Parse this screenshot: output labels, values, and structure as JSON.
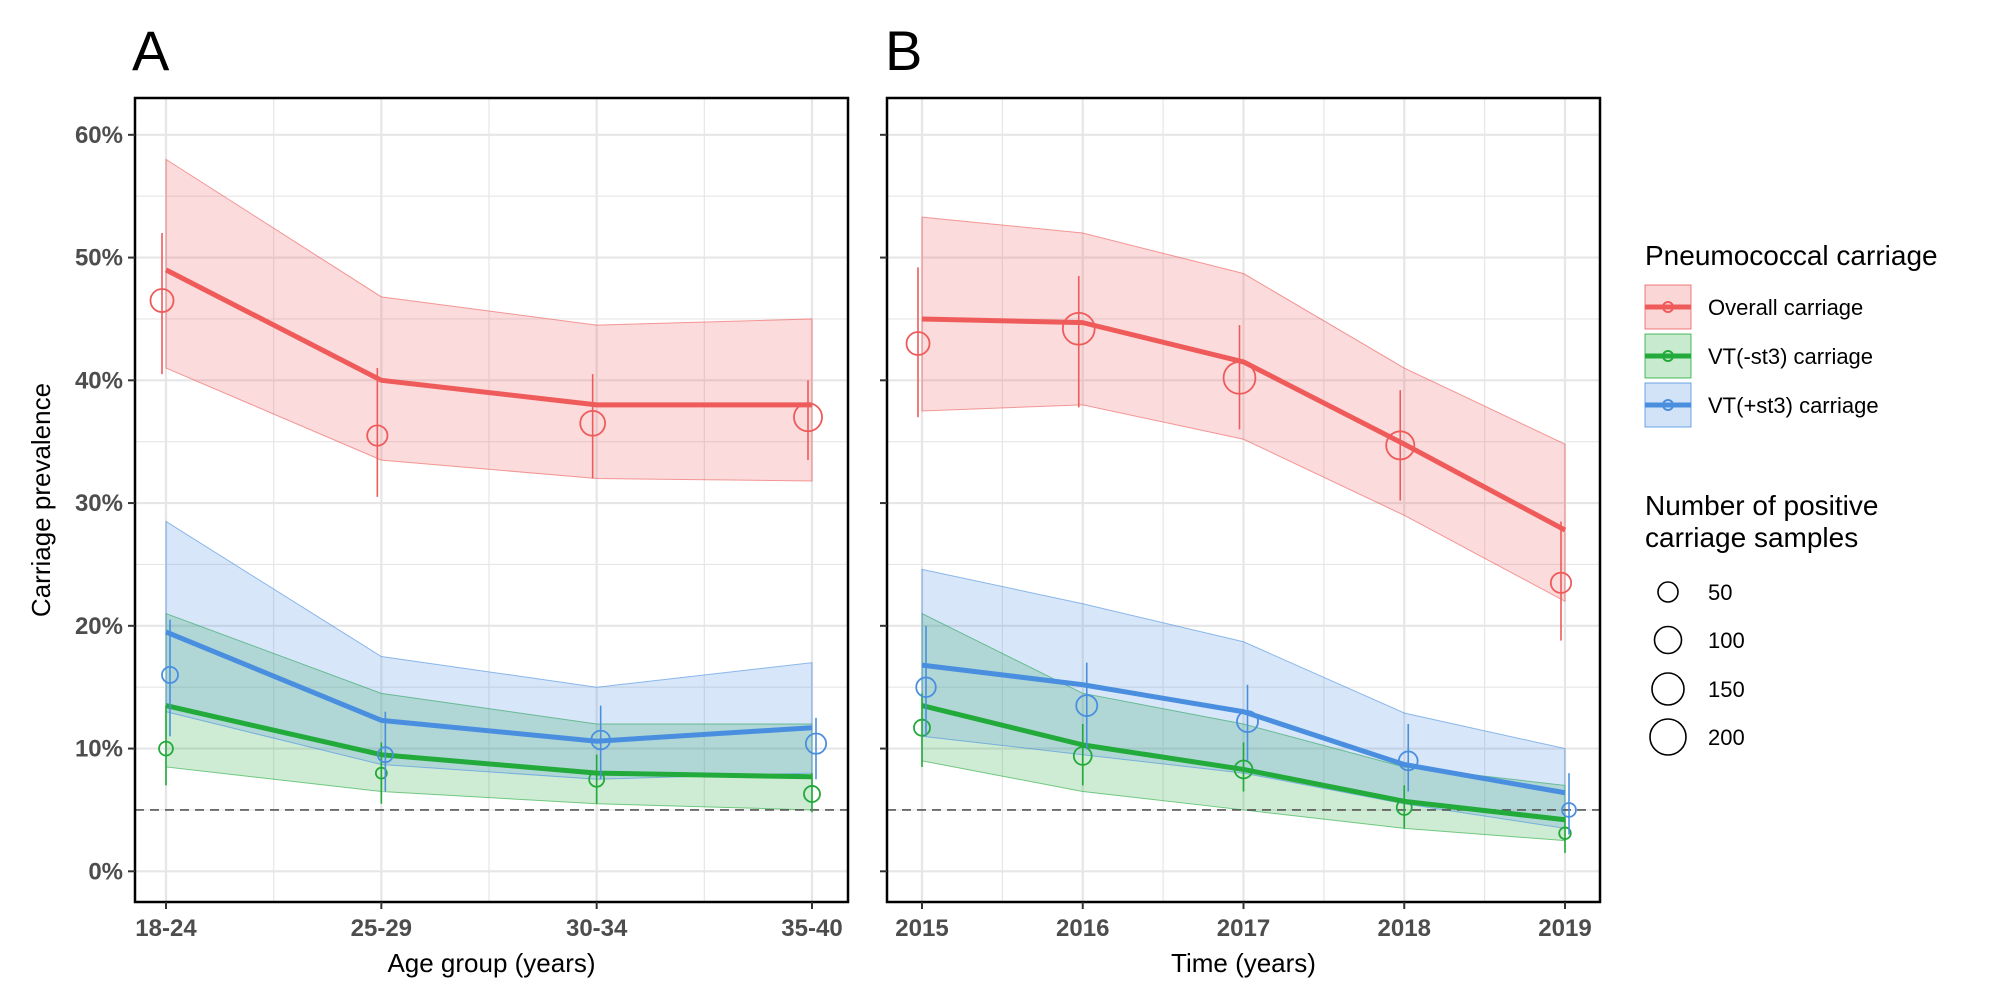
{
  "figure": {
    "panel_a_letter": "A",
    "panel_b_letter": "B",
    "ylabel": "Carriage prevalence"
  },
  "legend": {
    "carriage_title": "Pneumococcal carriage",
    "size_title_line1": "Number of positive",
    "size_title_line2": "carriage samples",
    "sizes": [
      "50",
      "100",
      "150",
      "200"
    ]
  },
  "colors": {
    "overall": "#ef5b5b",
    "vt_minus": "#22aa3a",
    "vt_plus": "#4a8fdf",
    "grid": "#e6e6e6",
    "threshold": "#555555"
  },
  "chart_data": [
    {
      "type": "line",
      "panel": "A",
      "xlabel": "Age group (years)",
      "ylabel": "Carriage prevalence",
      "categories": [
        "18-24",
        "25-29",
        "30-34",
        "35-40"
      ],
      "ylim": [
        -2.5,
        63
      ],
      "yticks": [
        "0%",
        "10%",
        "20%",
        "30%",
        "40%",
        "50%",
        "60%"
      ],
      "threshold": 5,
      "grid": true,
      "series": [
        {
          "name": "Overall carriage",
          "key": "overall",
          "model": [
            49,
            40,
            38,
            38
          ],
          "ci_low": [
            41,
            33.5,
            32,
            31.8
          ],
          "ci_high": [
            58,
            46.8,
            44.5,
            45
          ],
          "observed": [
            46.5,
            35.5,
            36.5,
            37
          ],
          "obs_low": [
            40.5,
            30.5,
            32,
            33.5
          ],
          "obs_high": [
            52,
            41,
            40.5,
            40
          ],
          "n_positive": [
            75,
            55,
            90,
            120
          ]
        },
        {
          "name": "VT(-st3) carriage",
          "key": "vt_minus",
          "model": [
            13.5,
            9.5,
            8,
            7.7
          ],
          "ci_low": [
            8.5,
            6.5,
            5.5,
            5
          ],
          "ci_high": [
            21,
            14.5,
            12,
            12
          ],
          "observed": [
            10,
            8,
            7.5,
            6.3
          ],
          "obs_low": [
            7,
            5.5,
            5.5,
            4.8
          ],
          "obs_high": [
            13.5,
            10.5,
            9.5,
            8
          ],
          "n_positive": [
            20,
            10,
            25,
            30
          ]
        },
        {
          "name": "VT(+st3) carriage",
          "key": "vt_plus",
          "model": [
            19.5,
            12.3,
            10.6,
            11.7
          ],
          "ci_low": [
            13,
            8.7,
            7.5,
            8
          ],
          "ci_high": [
            28.5,
            17.5,
            15,
            17
          ],
          "observed": [
            16,
            9.5,
            10.7,
            10.4
          ],
          "obs_low": [
            11,
            6.5,
            7.5,
            7.5
          ],
          "obs_high": [
            20.5,
            13,
            13.5,
            12.5
          ],
          "n_positive": [
            30,
            25,
            45,
            55
          ]
        }
      ]
    },
    {
      "type": "line",
      "panel": "B",
      "xlabel": "Time (years)",
      "ylabel": "Carriage prevalence",
      "categories": [
        "2015",
        "2016",
        "2017",
        "2018",
        "2019"
      ],
      "ylim": [
        -2.5,
        63
      ],
      "yticks": [
        "0%",
        "10%",
        "20%",
        "30%",
        "40%",
        "50%",
        "60%"
      ],
      "threshold": 5,
      "grid": true,
      "series": [
        {
          "name": "Overall carriage",
          "key": "overall",
          "model": [
            45,
            44.7,
            41.5,
            34.8,
            27.8
          ],
          "ci_low": [
            37.5,
            38,
            35.2,
            29,
            22
          ],
          "ci_high": [
            53.3,
            52,
            48.7,
            41,
            34.8
          ],
          "observed": [
            43,
            44.2,
            40.2,
            34.7,
            23.5
          ],
          "obs_low": [
            37,
            37.8,
            36,
            30.2,
            18.8
          ],
          "obs_high": [
            49.2,
            48.5,
            44.5,
            39.2,
            28.5
          ],
          "n_positive": [
            75,
            160,
            160,
            120,
            55
          ]
        },
        {
          "name": "VT(-st3) carriage",
          "key": "vt_minus",
          "model": [
            13.5,
            10.3,
            8.3,
            5.7,
            4.2
          ],
          "ci_low": [
            9,
            6.5,
            5,
            3.5,
            2.5
          ],
          "ci_high": [
            21,
            14.5,
            12,
            8.5,
            7
          ],
          "observed": [
            11.7,
            9.4,
            8.3,
            5.2,
            3.1
          ],
          "obs_low": [
            8.5,
            7,
            6.5,
            3.5,
            1.5
          ],
          "obs_high": [
            14.5,
            12,
            10.5,
            7,
            4.5
          ],
          "n_positive": [
            30,
            40,
            40,
            25,
            12
          ]
        },
        {
          "name": "VT(+st3) carriage",
          "key": "vt_plus",
          "model": [
            16.8,
            15.2,
            13,
            8.7,
            6.4
          ],
          "ci_low": [
            11,
            9.5,
            8,
            5.5,
            3.5
          ],
          "ci_high": [
            24.6,
            21.8,
            18.7,
            12.9,
            10
          ],
          "observed": [
            15,
            13.5,
            12.2,
            9,
            5
          ],
          "obs_low": [
            11,
            10,
            9,
            6.5,
            3
          ],
          "obs_high": [
            20,
            17,
            15.2,
            12,
            8
          ],
          "n_positive": [
            50,
            60,
            60,
            45,
            20
          ]
        }
      ]
    }
  ]
}
